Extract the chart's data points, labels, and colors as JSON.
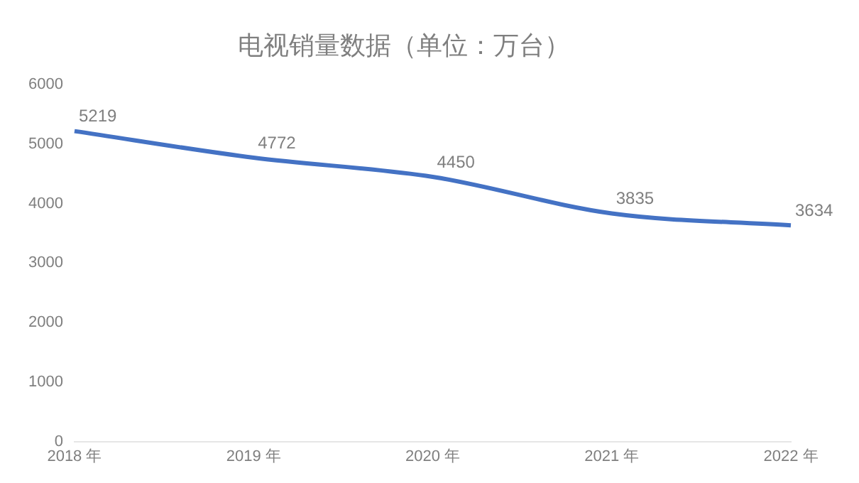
{
  "chart_data": {
    "type": "line",
    "title": "电视销量数据（单位：万台）",
    "categories": [
      "2018 年",
      "2019 年",
      "2020 年",
      "2021 年",
      "2022 年"
    ],
    "series": [
      {
        "color": "#4472c4",
        "values": [
          5219,
          4772,
          4450,
          3835,
          3634
        ]
      }
    ],
    "ylim": [
      0,
      6000
    ],
    "yticks": [
      0,
      1000,
      2000,
      3000,
      4000,
      5000,
      6000
    ],
    "grid": false,
    "legend": false,
    "marker": "none",
    "data_labels": true
  }
}
